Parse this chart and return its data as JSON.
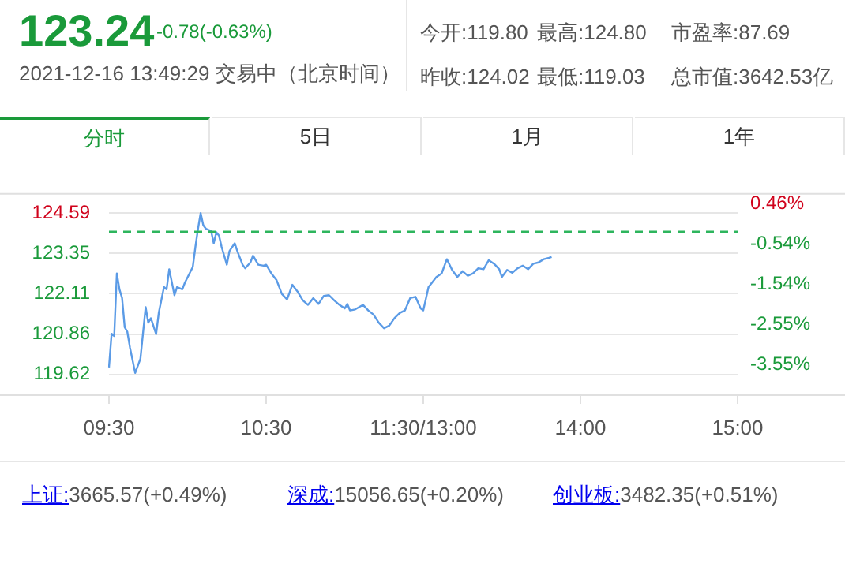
{
  "chart_data": {
    "type": "line",
    "title": "123.24",
    "subtitle": "-0.78(-0.63%)",
    "annotations": [
      "2021-12-16 13:49:29 交易中（北京时间）",
      "今开:119.80",
      "最高:124.80",
      "市盈率:87.69",
      "昨收:124.02",
      "最低:119.03",
      "总市值:3642.53亿",
      "分时",
      "5日",
      "1月",
      "1年",
      "上证:3665.57(+0.49%)",
      "深成:15056.65(+0.20%)",
      "创业板:3482.35(+0.51%)"
    ],
    "categories": [
      "09:30",
      null,
      null,
      null,
      null,
      null,
      null,
      null,
      null,
      null,
      null,
      null,
      null,
      null,
      null,
      null,
      null,
      null,
      null,
      null,
      null,
      null,
      null,
      null,
      null,
      null,
      null,
      null,
      null,
      null,
      null,
      null,
      null,
      null,
      null,
      null,
      null,
      null,
      null,
      null,
      null,
      null,
      null,
      null,
      null,
      null,
      null,
      null,
      null,
      null,
      null,
      null,
      null,
      null,
      null,
      null,
      null,
      null,
      null,
      null,
      "10:30",
      null,
      null,
      null,
      null,
      null,
      null,
      null,
      null,
      null,
      null,
      null,
      null,
      null,
      null,
      null,
      null,
      null,
      null,
      null,
      null,
      null,
      null,
      null,
      null,
      null,
      null,
      null,
      null,
      null,
      null,
      null,
      null,
      null,
      null,
      null,
      null,
      null,
      null,
      null,
      null,
      null,
      null,
      null,
      null,
      null,
      null,
      null,
      null,
      null,
      null,
      null,
      null,
      null,
      null,
      null,
      null,
      null,
      null,
      null,
      "11:30/13:00",
      null,
      null,
      null,
      null,
      null,
      null,
      null,
      null,
      null,
      null,
      null,
      null,
      null,
      null,
      null,
      null,
      null,
      null,
      null,
      null,
      null,
      null,
      null,
      null,
      null,
      null,
      null,
      null,
      null,
      null,
      null,
      null,
      null,
      null,
      null,
      null,
      null,
      null,
      null,
      null,
      null,
      null,
      null,
      null,
      null,
      null,
      null,
      null,
      null,
      null,
      null,
      null,
      null,
      null,
      null,
      null,
      null,
      null,
      null,
      "14:00",
      null,
      null,
      null,
      null,
      null,
      null,
      null,
      null,
      null,
      null,
      null,
      null,
      null,
      null,
      null,
      null,
      null,
      null,
      null,
      null,
      null,
      null,
      null,
      null,
      null,
      null,
      null,
      null,
      null,
      null,
      null,
      null,
      null,
      null,
      null,
      null,
      null,
      null,
      null,
      null,
      null,
      null,
      null,
      null,
      null,
      null,
      null,
      null,
      null,
      null,
      null,
      null,
      null,
      null,
      null,
      null,
      null,
      null,
      null,
      "15:00"
    ],
    "series": [
      {
        "color": "#5b9be6",
        "values": [
          119.83,
          120.87,
          120.8,
          122.73,
          122.24,
          121.97,
          121.07,
          120.93,
          120.45,
          null,
          119.66,
          null,
          120.1,
          null,
          121.69,
          121.21,
          121.35,
          null,
          120.86,
          121.51,
          null,
          122.31,
          122.24,
          122.86,
          null,
          122.06,
          122.31,
          null,
          122.24,
          122.45,
          null,
          null,
          122.93,
          123.55,
          124.11,
          124.59,
          124.22,
          124.11,
          null,
          124.04,
          123.66,
          124.0,
          123.9,
          123.55,
          null,
          123.0,
          123.42,
          null,
          123.66,
          123.42,
          null,
          123.0,
          122.89,
          null,
          123.07,
          123.28,
          null,
          123.0,
          null,
          122.97,
          123.0,
          null,
          122.73,
          null,
          122.52,
          null,
          122.1,
          null,
          121.93,
          null,
          122.38,
          null,
          122.17,
          null,
          121.9,
          null,
          121.76,
          null,
          121.97,
          null,
          121.79,
          null,
          122.04,
          null,
          122.06,
          null,
          121.9,
          null,
          121.76,
          null,
          121.65,
          121.79,
          121.59,
          null,
          121.62,
          null,
          null,
          121.76,
          null,
          121.59,
          null,
          121.46,
          null,
          121.21,
          null,
          121.04,
          null,
          121.12,
          null,
          121.35,
          null,
          121.51,
          null,
          121.59,
          null,
          121.97,
          null,
          122.01,
          null,
          121.65,
          121.59,
          null,
          122.31,
          null,
          null,
          122.62,
          null,
          122.73,
          null,
          123.17,
          null,
          122.84,
          null,
          122.62,
          null,
          122.8,
          null,
          122.66,
          null,
          122.73,
          null,
          122.89,
          null,
          122.86,
          null,
          123.14,
          null,
          123.03,
          null,
          122.86,
          122.62,
          null,
          122.84,
          null,
          122.75,
          null,
          122.89,
          null,
          122.97,
          null,
          122.86,
          null,
          123.03,
          null,
          123.07,
          null,
          123.17,
          null,
          123.21,
          123.24,
          null,
          null,
          null,
          null,
          null,
          null,
          null,
          null,
          null,
          null,
          null,
          null,
          null,
          null,
          null,
          null,
          null,
          null,
          null,
          null,
          null,
          null,
          null,
          null,
          null,
          null,
          null,
          null,
          null,
          null,
          null,
          null,
          null,
          null,
          null,
          null,
          null,
          null,
          null,
          null,
          null,
          null,
          null,
          null,
          null,
          null,
          null,
          null,
          null,
          null,
          null,
          null,
          null,
          null,
          null,
          null,
          null,
          null,
          null,
          null,
          null,
          null,
          null,
          null,
          null,
          null,
          null,
          null,
          null,
          null,
          null
        ]
      }
    ],
    "ylim": [
      119.0,
      125.21
    ],
    "yticks": [
      119.62,
      120.86,
      122.11,
      123.35,
      124.59
    ],
    "y2lim": [
      -4.05,
      0.96
    ],
    "y2ticks": [
      {
        "value": -3.55,
        "label": "-3.55%"
      },
      {
        "value": -2.55,
        "label": "-2.55%"
      },
      {
        "value": -1.54,
        "label": "-1.54%"
      },
      {
        "value": -0.54,
        "label": "-0.54%"
      },
      {
        "value": 0.46,
        "label": "0.46%"
      }
    ],
    "ref_lines": [
      {
        "axis": "y",
        "value": 124.02,
        "color": "#2db55d",
        "line_style": "dashed"
      }
    ],
    "grid": "y",
    "legend": false,
    "marker": "none",
    "line_style": "solid"
  }
}
